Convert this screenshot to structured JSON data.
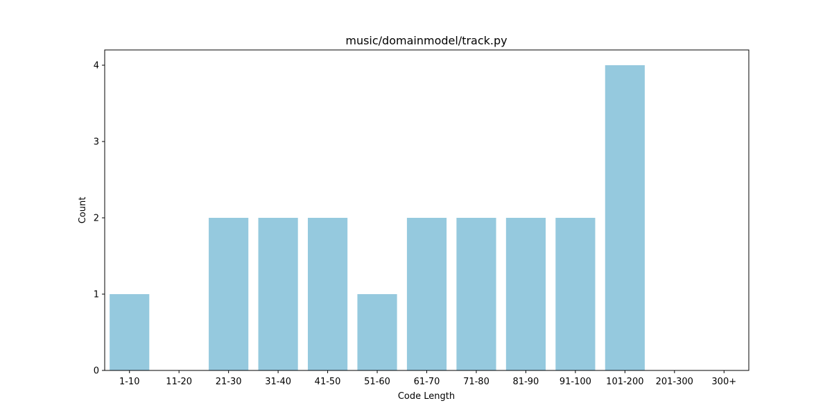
{
  "chart_data": {
    "type": "bar",
    "title": "music/domainmodel/track.py",
    "xlabel": "Code Length",
    "ylabel": "Count",
    "categories": [
      "1-10",
      "11-20",
      "21-30",
      "31-40",
      "41-50",
      "51-60",
      "61-70",
      "71-80",
      "81-90",
      "91-100",
      "101-200",
      "201-300",
      "300+"
    ],
    "values": [
      1,
      0,
      2,
      2,
      2,
      1,
      2,
      2,
      2,
      2,
      4,
      0,
      0
    ],
    "ylim": [
      0,
      4.2
    ],
    "yticks": [
      0,
      1,
      2,
      3,
      4
    ],
    "bar_color": "#95c9de",
    "grid": false,
    "legend": "none"
  }
}
